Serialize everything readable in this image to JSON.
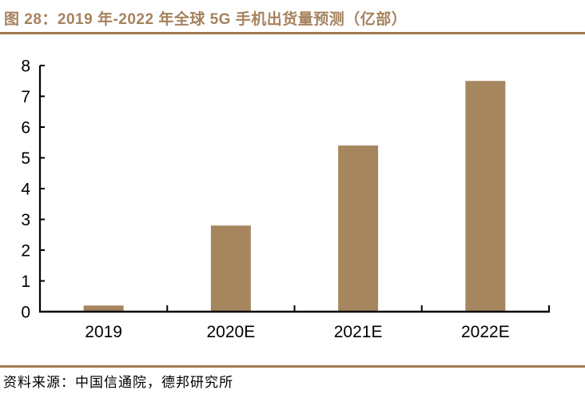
{
  "header": {
    "title": "图 28：2019 年-2022 年全球 5G 手机出货量预测（亿部）"
  },
  "colors": {
    "title_text": "#A5825E",
    "accent_rule": "#A1794F",
    "bar_fill": "#A6865F",
    "axis": "#000000",
    "tick_label": "#000000"
  },
  "chart_data": {
    "type": "bar",
    "title": "2019 年-2022 年全球 5G 手机出货量预测",
    "unit": "亿部",
    "categories": [
      "2019",
      "2020E",
      "2021E",
      "2022E"
    ],
    "values": [
      0.2,
      2.8,
      5.4,
      7.5
    ],
    "xlabel": "",
    "ylabel": "",
    "ylim": [
      0,
      8
    ],
    "yticks": [
      0,
      1,
      2,
      3,
      4,
      5,
      6,
      7,
      8
    ],
    "grid": false,
    "legend": "none"
  },
  "footer": {
    "source_label": "资料来源：中国信通院，德邦研究所"
  }
}
